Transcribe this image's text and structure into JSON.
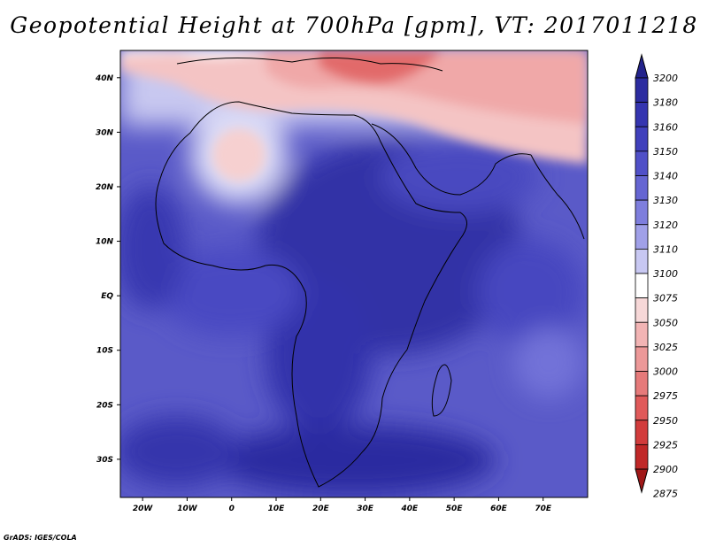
{
  "title": "Geopotential Height at 700hPa [gpm], VT: 2017011218",
  "footer": "GrADS: IGES/COLA",
  "map": {
    "projection": "latlon",
    "lon_range": [
      -25,
      80
    ],
    "lat_range": [
      -37,
      45
    ],
    "lon_ticks": [
      "20W",
      "10W",
      "0",
      "10E",
      "20E",
      "30E",
      "40E",
      "50E",
      "60E",
      "70E"
    ],
    "lat_ticks": [
      "40N",
      "30N",
      "20N",
      "10N",
      "EQ",
      "10S",
      "20S",
      "30S"
    ]
  },
  "colorbar": {
    "levels": [
      "3200",
      "3180",
      "3160",
      "3150",
      "3140",
      "3130",
      "3120",
      "3110",
      "3100",
      "3075",
      "3050",
      "3025",
      "3000",
      "2975",
      "2950",
      "2925",
      "2900",
      "2875"
    ],
    "colors": [
      "#23238c",
      "#2c2ca0",
      "#3535b0",
      "#4040bc",
      "#5050c8",
      "#6565d2",
      "#7e7edd",
      "#a0a0e8",
      "#c8c8f2",
      "#ffffff",
      "#f7d8d8",
      "#f2b4b4",
      "#ec9898",
      "#e67a7a",
      "#e05a5a",
      "#d23c3c",
      "#c02828",
      "#a01818"
    ]
  }
}
